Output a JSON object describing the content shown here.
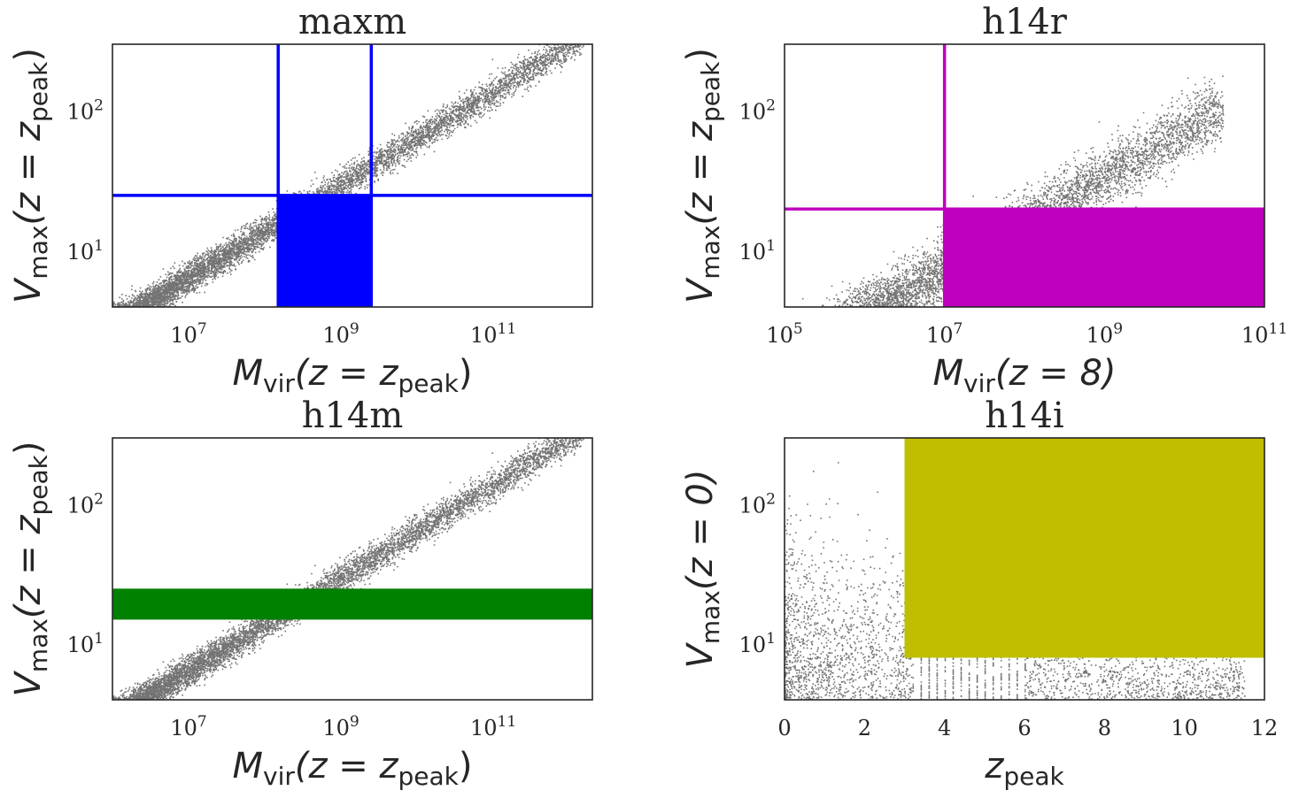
{
  "chart_data": [
    {
      "type": "scatter",
      "title": "maxm",
      "xscale": "log",
      "yscale": "log",
      "xlim": [
        1000000,
        2000000000000
      ],
      "ylim": [
        4,
        300
      ],
      "xticks": [
        {
          "v": 10000000,
          "e": "7"
        },
        {
          "v": 1000000000,
          "e": "9"
        },
        {
          "v": 100000000000,
          "e": "11"
        }
      ],
      "yticks": [
        {
          "v": 10,
          "e": "1"
        },
        {
          "v": 100,
          "e": "2"
        }
      ],
      "xlabel": {
        "base": "M",
        "sub": "vir",
        "cond": "(z = z",
        "csub": "peak",
        "close": ")"
      },
      "ylabel": {
        "base": "V",
        "sub": "max",
        "cond": "(z = z",
        "csub": "peak",
        "close": ")"
      },
      "color": "#0000ff",
      "region": {
        "x": [
          150000000,
          2500000000
        ],
        "y": [
          4,
          25
        ]
      },
      "vlines": [
        150000000,
        2500000000
      ],
      "hlines": [
        25
      ],
      "cloud": {
        "kind": "mass",
        "x0": 1000000,
        "x1": 1500000000000,
        "v_at_1e6": 3.0,
        "slope": 0.3333,
        "spread": 0.055
      }
    },
    {
      "type": "scatter",
      "title": "h14r",
      "xscale": "log",
      "yscale": "log",
      "xlim": [
        100000,
        100000000000
      ],
      "ylim": [
        4,
        300
      ],
      "xticks": [
        {
          "v": 100000,
          "e": "5"
        },
        {
          "v": 10000000,
          "e": "7"
        },
        {
          "v": 1000000000,
          "e": "9"
        },
        {
          "v": 100000000000,
          "e": "11"
        }
      ],
      "yticks": [
        {
          "v": 10,
          "e": "1"
        },
        {
          "v": 100,
          "e": "2"
        }
      ],
      "xlabel": {
        "base": "M",
        "sub": "vir",
        "cond": "(z = 8)",
        "csub": "",
        "close": ""
      },
      "ylabel": {
        "base": "V",
        "sub": "max",
        "cond": "(z = z",
        "csub": "peak",
        "close": ")"
      },
      "color": "#bf00bf",
      "region": {
        "x": [
          10000000,
          100000000000
        ],
        "y": [
          4,
          20
        ]
      },
      "vlines": [
        10000000
      ],
      "hlines": [
        20
      ],
      "cloud": {
        "kind": "mass",
        "x0": 100000,
        "x1": 30000000000,
        "v_at_1e6": 3.4,
        "slope": 0.3333,
        "spread": 0.11
      }
    },
    {
      "type": "scatter",
      "title": "h14m",
      "xscale": "log",
      "yscale": "log",
      "xlim": [
        1000000,
        2000000000000
      ],
      "ylim": [
        4,
        300
      ],
      "xticks": [
        {
          "v": 10000000,
          "e": "7"
        },
        {
          "v": 1000000000,
          "e": "9"
        },
        {
          "v": 100000000000,
          "e": "11"
        }
      ],
      "yticks": [
        {
          "v": 10,
          "e": "1"
        },
        {
          "v": 100,
          "e": "2"
        }
      ],
      "xlabel": {
        "base": "M",
        "sub": "vir",
        "cond": "(z = z",
        "csub": "peak",
        "close": ")"
      },
      "ylabel": {
        "base": "V",
        "sub": "max",
        "cond": "(z = z",
        "csub": "peak",
        "close": ")"
      },
      "color": "#008000",
      "region": {
        "x": [
          1000000,
          2000000000000
        ],
        "y": [
          15,
          25
        ]
      },
      "vlines": [],
      "hlines": [],
      "cloud": {
        "kind": "mass",
        "x0": 1000000,
        "x1": 1500000000000,
        "v_at_1e6": 3.0,
        "slope": 0.3333,
        "spread": 0.055
      }
    },
    {
      "type": "scatter",
      "title": "h14i",
      "xscale": "linear",
      "yscale": "log",
      "xlim": [
        0,
        12
      ],
      "ylim": [
        4,
        300
      ],
      "xticks": [
        {
          "v": 0,
          "t": "0"
        },
        {
          "v": 2,
          "t": "2"
        },
        {
          "v": 4,
          "t": "4"
        },
        {
          "v": 6,
          "t": "6"
        },
        {
          "v": 8,
          "t": "8"
        },
        {
          "v": 10,
          "t": "10"
        },
        {
          "v": 12,
          "t": "12"
        }
      ],
      "yticks": [
        {
          "v": 10,
          "e": "1"
        },
        {
          "v": 100,
          "e": "2"
        }
      ],
      "xlabel": {
        "base": "z",
        "sub": "peak",
        "cond": "",
        "csub": "",
        "close": ""
      },
      "ylabel": {
        "base": "V",
        "sub": "max",
        "cond": "(z = 0)",
        "csub": "",
        "close": ""
      },
      "color": "#bfbf00",
      "region": {
        "x": [
          3,
          12
        ],
        "y": [
          8,
          300
        ]
      },
      "vlines": [],
      "hlines": [],
      "cloud": {
        "kind": "zpeak",
        "x0": 0,
        "x1": 11.5
      }
    }
  ]
}
